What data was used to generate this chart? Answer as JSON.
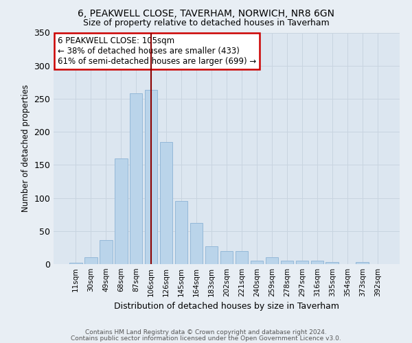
{
  "title1": "6, PEAKWELL CLOSE, TAVERHAM, NORWICH, NR8 6GN",
  "title2": "Size of property relative to detached houses in Taverham",
  "xlabel": "Distribution of detached houses by size in Taverham",
  "ylabel": "Number of detached properties",
  "categories": [
    "11sqm",
    "30sqm",
    "49sqm",
    "68sqm",
    "87sqm",
    "106sqm",
    "126sqm",
    "145sqm",
    "164sqm",
    "183sqm",
    "202sqm",
    "221sqm",
    "240sqm",
    "259sqm",
    "278sqm",
    "297sqm",
    "316sqm",
    "335sqm",
    "354sqm",
    "373sqm",
    "392sqm"
  ],
  "values": [
    2,
    10,
    36,
    160,
    258,
    263,
    185,
    95,
    62,
    27,
    20,
    20,
    5,
    10,
    5,
    5,
    5,
    3,
    0,
    3,
    0
  ],
  "bar_color": "#bad4ea",
  "bar_edge_color": "#94b8d8",
  "vline_x": 5,
  "vline_color": "#8b0000",
  "annotation_text": "6 PEAKWELL CLOSE: 105sqm\n← 38% of detached houses are smaller (433)\n61% of semi-detached houses are larger (699) →",
  "annotation_box_color": "#ffffff",
  "annotation_box_edge": "#cc0000",
  "bg_color": "#e8eef4",
  "plot_bg_color": "#dce6f0",
  "footer1": "Contains HM Land Registry data © Crown copyright and database right 2024.",
  "footer2": "Contains public sector information licensed under the Open Government Licence v3.0.",
  "ylim": [
    0,
    350
  ],
  "yticks": [
    0,
    50,
    100,
    150,
    200,
    250,
    300,
    350
  ]
}
